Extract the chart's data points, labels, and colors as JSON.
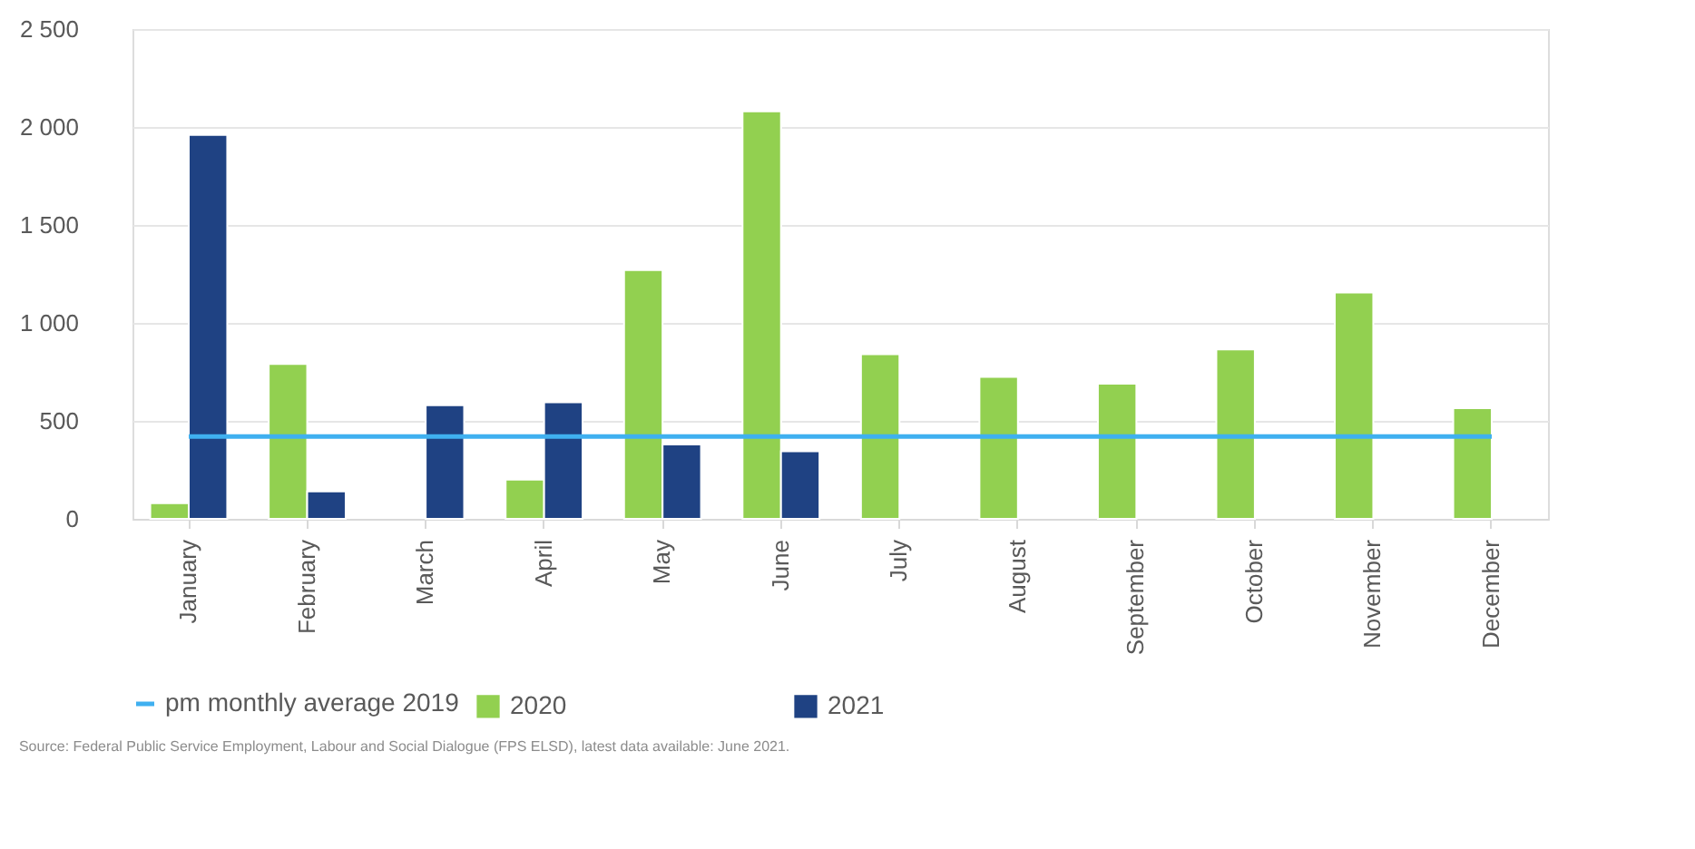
{
  "chart_data": {
    "type": "bar",
    "categories": [
      "January",
      "February",
      "March",
      "April",
      "May",
      "June",
      "July",
      "August",
      "September",
      "October",
      "November",
      "December"
    ],
    "series": [
      {
        "name": "2020",
        "color": "#92d050",
        "values": [
          80,
          790,
          null,
          200,
          1270,
          2080,
          840,
          725,
          690,
          865,
          1155,
          565
        ]
      },
      {
        "name": "2021",
        "color": "#1f4283",
        "values": [
          1960,
          140,
          580,
          595,
          380,
          345,
          null,
          null,
          null,
          null,
          null,
          null
        ]
      },
      {
        "name": "pm monthly average 2019",
        "type": "line",
        "color": "#3fb0f0",
        "values": [
          420,
          420,
          420,
          420,
          420,
          420,
          420,
          420,
          420,
          420,
          420,
          420
        ]
      }
    ],
    "ylim": [
      0,
      2500
    ],
    "yticks": [
      0,
      500,
      {
        "value": 1000,
        "label": "1 000"
      },
      {
        "value": 1500,
        "label": "1 500"
      },
      {
        "value": 2000,
        "label": "2 000"
      },
      {
        "value": 2500,
        "label": "2 500"
      }
    ],
    "grid": "y",
    "legend": "bottom",
    "annotations": [
      "Source: Federal Public Service Employment, Labour and Social Dialogue (FPS ELSD), latest data available: June 2021."
    ]
  }
}
